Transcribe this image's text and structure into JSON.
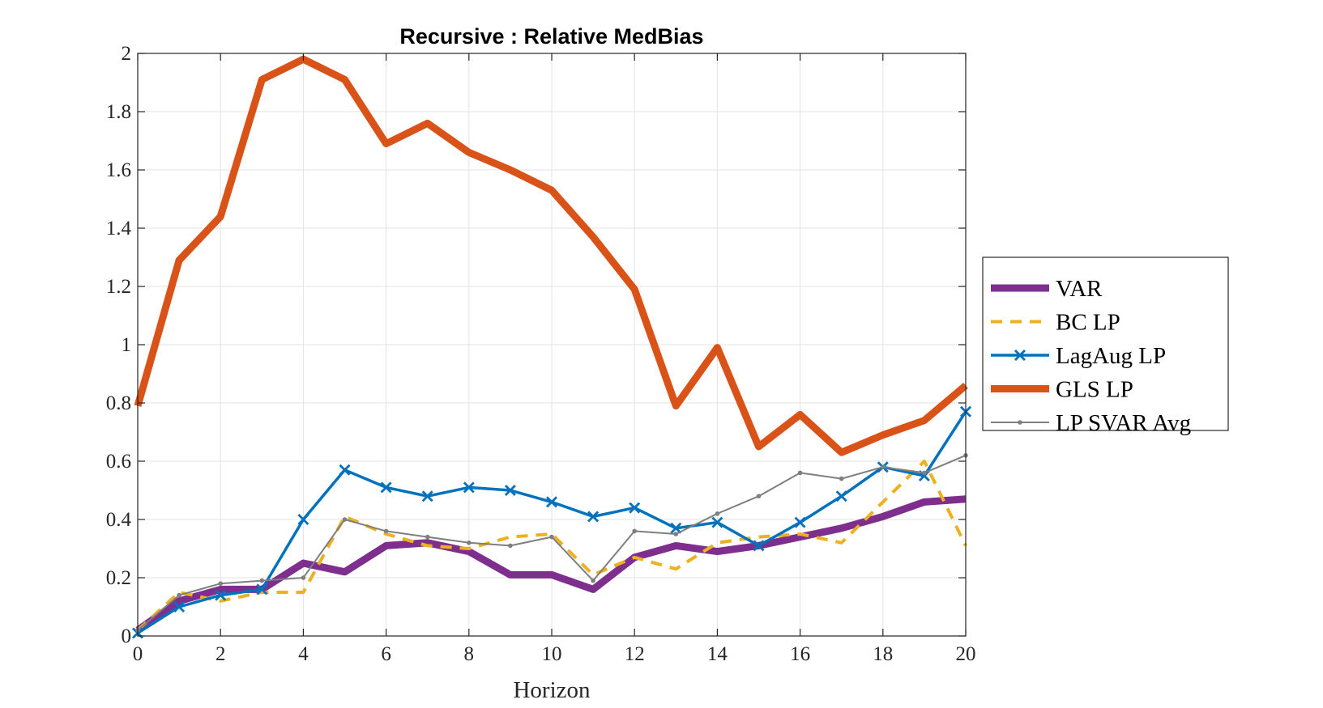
{
  "chart_data": {
    "type": "line",
    "title": "Recursive : Relative MedBias",
    "xlabel": "Horizon",
    "ylabel": "",
    "xlim": [
      0,
      20
    ],
    "ylim": [
      0,
      2
    ],
    "grid": true,
    "legend_position": "right-outside",
    "x": [
      0,
      1,
      2,
      3,
      4,
      5,
      6,
      7,
      8,
      9,
      10,
      11,
      12,
      13,
      14,
      15,
      16,
      17,
      18,
      19,
      20
    ],
    "x_ticks": [
      "0",
      "2",
      "4",
      "6",
      "8",
      "10",
      "12",
      "14",
      "16",
      "18",
      "20"
    ],
    "y_ticks": [
      "0",
      "0.2",
      "0.4",
      "0.6",
      "0.8",
      "1",
      "1.2",
      "1.4",
      "1.6",
      "1.8",
      "2"
    ],
    "series": [
      {
        "name": "VAR",
        "color": "#7E2F8E",
        "style": "solid-thick",
        "values": [
          0.02,
          0.12,
          0.16,
          0.16,
          0.25,
          0.22,
          0.31,
          0.32,
          0.29,
          0.21,
          0.21,
          0.16,
          0.27,
          0.31,
          0.29,
          0.31,
          0.34,
          0.37,
          0.41,
          0.46,
          0.47
        ]
      },
      {
        "name": "BC LP",
        "color": "#EDB120",
        "style": "dashed",
        "values": [
          0.02,
          0.15,
          0.12,
          0.15,
          0.15,
          0.41,
          0.35,
          0.31,
          0.3,
          0.34,
          0.35,
          0.21,
          0.27,
          0.23,
          0.32,
          0.34,
          0.35,
          0.32,
          0.46,
          0.6,
          0.31
        ]
      },
      {
        "name": "LagAug LP",
        "color": "#0072BD",
        "style": "solid-x-markers",
        "values": [
          0.01,
          0.1,
          0.14,
          0.16,
          0.4,
          0.57,
          0.51,
          0.48,
          0.51,
          0.5,
          0.46,
          0.41,
          0.44,
          0.37,
          0.39,
          0.31,
          0.39,
          0.48,
          0.58,
          0.55,
          0.77
        ]
      },
      {
        "name": "GLS LP",
        "color": "#D95319",
        "style": "solid-thick",
        "values": [
          0.79,
          1.29,
          1.44,
          1.91,
          1.98,
          1.91,
          1.69,
          1.76,
          1.66,
          1.6,
          1.53,
          1.37,
          1.19,
          0.79,
          0.99,
          0.65,
          0.76,
          0.63,
          0.69,
          0.74,
          0.86
        ]
      },
      {
        "name": "LP SVAR Avg",
        "color": "#7F7F7F",
        "style": "solid-thin-dots",
        "values": [
          0.02,
          0.14,
          0.18,
          0.19,
          0.2,
          0.4,
          0.36,
          0.34,
          0.32,
          0.31,
          0.34,
          0.19,
          0.36,
          0.35,
          0.42,
          0.48,
          0.56,
          0.54,
          0.58,
          0.56,
          0.62
        ]
      }
    ]
  }
}
